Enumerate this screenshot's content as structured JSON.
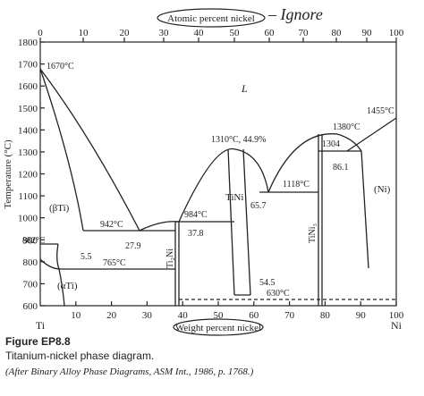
{
  "top_axis_label": "Atomic percent nickel",
  "handwritten_note": "– Ignore",
  "x_axis_label": "Weight percent nickel",
  "y_axis_label": "Temperature (°C)",
  "top_ticks": [
    "0",
    "10",
    "20",
    "30",
    "40",
    "50",
    "60",
    "70",
    "80",
    "90",
    "100"
  ],
  "bottom_ticks": [
    "10",
    "20",
    "30",
    "40",
    "50",
    "60",
    "70",
    "80",
    "90",
    "100"
  ],
  "left_ticks": [
    "600",
    "700",
    "800",
    "900",
    "1000",
    "1100",
    "1200",
    "1300",
    "1400",
    "1500",
    "1600",
    "1700",
    "1800"
  ],
  "end_labels": [
    "Ti",
    "Ni"
  ],
  "phase_labels": [
    "L",
    "(βTi)",
    "(αTi)",
    "TiNi",
    "Ti₂Ni",
    "TiNi₃",
    "(Ni)"
  ],
  "annotations": [
    "1670°C",
    "882°C",
    "942°C",
    "27.9",
    "5.5",
    "765°C",
    "984°C",
    "37.8",
    "1310°C, 44.9%",
    "65.7",
    "1118°C",
    "1380°C",
    "1304",
    "86.1",
    "1455°C",
    "54.5",
    "630°C"
  ],
  "caption": {
    "figure": "Figure EP8.8",
    "title": "Titanium-nickel phase diagram.",
    "source": "(After Binary Alloy Phase Diagrams, ASM Int., 1986, p. 1768.)"
  }
}
